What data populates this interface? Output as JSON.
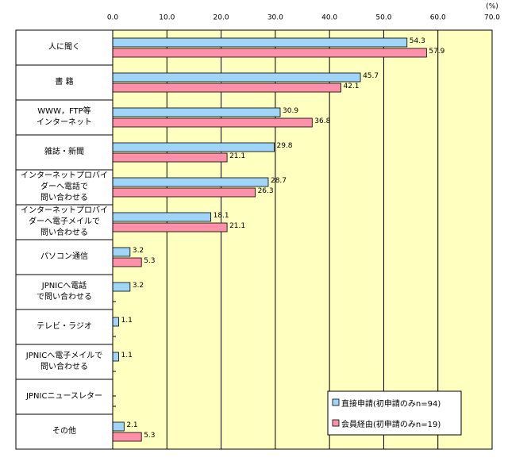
{
  "chart_data": {
    "type": "hbar",
    "unit_label": "(%)",
    "categories": [
      "人に聞く",
      "書 籍",
      "WWW，FTP等\nインターネット",
      "雑誌・新聞",
      "インターネットプロバイ\nダーへ電話で\n問い合わせる",
      "インターネットプロバイ\nダーへ電子メイルで\n問い合わせる",
      "パソコン通信",
      "JPNICへ電話\nで問い合わせる",
      "テレビ・ラジオ",
      "JPNICへ電子メイルで\n問い合わせる",
      "JPNICニュースレター",
      "その他"
    ],
    "series": [
      {
        "name": "直接申請(初申請のみn=94)",
        "color": "#a0d4f8",
        "values": [
          54.3,
          45.7,
          30.9,
          29.8,
          28.7,
          18.1,
          3.2,
          3.2,
          1.1,
          1.1,
          0,
          2.1
        ],
        "value_labels": [
          "54.3",
          "45.7",
          "30.9",
          "29.8",
          "28.7",
          "18.1",
          "3.2",
          "3.2",
          "1.1",
          "1.1",
          null,
          "2.1"
        ]
      },
      {
        "name": "会員経由(初申請のみn=19)",
        "color": "#ff90aa",
        "values": [
          57.9,
          42.1,
          36.8,
          21.1,
          26.3,
          21.1,
          5.3,
          0,
          0,
          0,
          0,
          5.3
        ],
        "value_labels": [
          "57.9",
          "42.1",
          "36.8",
          "21.1",
          "26.3",
          "21.1",
          "5.3",
          null,
          null,
          null,
          null,
          "5.3"
        ]
      }
    ],
    "xlim": [
      0,
      70
    ],
    "xticks": [
      {
        "value": 0,
        "label": "0.0"
      },
      {
        "value": 10,
        "label": "10.0"
      },
      {
        "value": 20,
        "label": "20.0"
      },
      {
        "value": 30,
        "label": "30.0"
      },
      {
        "value": 40,
        "label": "40.0"
      },
      {
        "value": 50,
        "label": "50.0"
      },
      {
        "value": 60,
        "label": "60.0"
      },
      {
        "value": 70,
        "label": "70.0"
      }
    ],
    "grid": true,
    "legend": "lower right",
    "background": "#ffffc0"
  }
}
